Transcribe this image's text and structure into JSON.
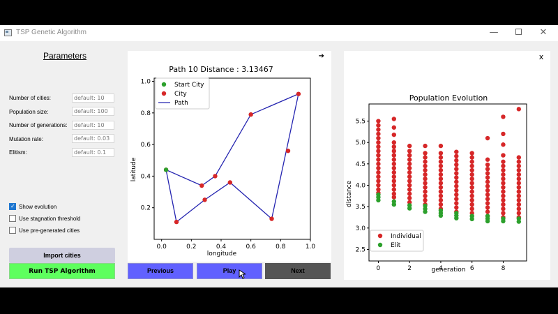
{
  "window": {
    "title": "TSP Genetic Algorithm",
    "close_panel": "x"
  },
  "parameters": {
    "title": "Parameters",
    "fields": [
      {
        "label": "Number of cities:",
        "placeholder": "default: 10"
      },
      {
        "label": "Population size:",
        "placeholder": "default: 100"
      },
      {
        "label": "Number of generations:",
        "placeholder": "default: 10"
      },
      {
        "label": "Mutation rate:",
        "placeholder": "default: 0.03"
      },
      {
        "label": "Elitism:",
        "placeholder": "default: 0.1"
      }
    ],
    "checks": [
      {
        "label": "Show evolution",
        "checked": true
      },
      {
        "label": "Use stagnation threshold",
        "checked": false
      },
      {
        "label": "Use pre-generated cities",
        "checked": false
      }
    ],
    "import_label": "Import cities",
    "run_label": "Run TSP Algorithm"
  },
  "controls": {
    "previous": "Previous",
    "play": "Play",
    "next": "Next",
    "arrow": "➔"
  },
  "colors": {
    "run": "#5eff5e",
    "nav": "#6161ff",
    "next": "#555555",
    "city": "#d62728",
    "start": "#2ca02c",
    "path": "#2424b0"
  },
  "chart_data": [
    {
      "type": "line",
      "title": "Path 10 Distance : 3.13467",
      "xlabel": "longitude",
      "ylabel": "latitude",
      "xlim": [
        -0.05,
        1.0
      ],
      "ylim": [
        0.0,
        1.02
      ],
      "xticks": [
        "0.0",
        "0.2",
        "0.4",
        "0.6",
        "0.8",
        "1.0"
      ],
      "yticks": [
        "0.2",
        "0.4",
        "0.6",
        "0.8",
        "1.0"
      ],
      "legend": [
        "Start City",
        "City",
        "Path"
      ],
      "start_city": [
        0.03,
        0.44
      ],
      "cities": [
        [
          0.03,
          0.44
        ],
        [
          0.1,
          0.11
        ],
        [
          0.29,
          0.25
        ],
        [
          0.46,
          0.36
        ],
        [
          0.74,
          0.13
        ],
        [
          0.92,
          0.92
        ],
        [
          0.6,
          0.79
        ],
        [
          0.36,
          0.4
        ],
        [
          0.27,
          0.34
        ],
        [
          0.85,
          0.56
        ]
      ],
      "path": [
        [
          0.03,
          0.44
        ],
        [
          0.1,
          0.11
        ],
        [
          0.29,
          0.25
        ],
        [
          0.46,
          0.36
        ],
        [
          0.74,
          0.13
        ],
        [
          0.92,
          0.92
        ],
        [
          0.6,
          0.79
        ],
        [
          0.36,
          0.4
        ],
        [
          0.27,
          0.34
        ],
        [
          0.03,
          0.44
        ]
      ]
    },
    {
      "type": "scatter",
      "title": "Population Evolution",
      "xlabel": "generation",
      "ylabel": "distance",
      "xlim": [
        -0.6,
        9.5
      ],
      "ylim": [
        2.23,
        5.9
      ],
      "xticks": [
        "0",
        "2",
        "4",
        "6",
        "8"
      ],
      "yticks": [
        "2.5",
        "3.0",
        "3.5",
        "4.0",
        "4.5",
        "5.0",
        "5.5"
      ],
      "legend": [
        "Individual",
        "Elit"
      ],
      "individual": {
        "0": [
          3.82,
          3.9,
          4.0,
          4.1,
          4.2,
          4.3,
          4.4,
          4.5,
          4.6,
          4.7,
          4.8,
          4.9,
          5.0,
          5.1,
          5.2,
          5.3,
          5.4,
          5.5
        ],
        "1": [
          3.72,
          3.8,
          3.9,
          4.0,
          4.1,
          4.2,
          4.3,
          4.4,
          4.5,
          4.6,
          4.7,
          4.8,
          4.9,
          5.0,
          5.18,
          5.35,
          5.55
        ],
        "2": [
          3.6,
          3.7,
          3.8,
          3.9,
          4.0,
          4.1,
          4.2,
          4.3,
          4.4,
          4.5,
          4.6,
          4.7,
          4.8,
          4.92
        ],
        "3": [
          3.55,
          3.65,
          3.75,
          3.85,
          3.95,
          4.05,
          4.15,
          4.25,
          4.35,
          4.45,
          4.55,
          4.65,
          4.75,
          4.92
        ],
        "4": [
          3.45,
          3.55,
          3.65,
          3.75,
          3.85,
          3.95,
          4.05,
          4.15,
          4.25,
          4.35,
          4.45,
          4.55,
          4.65,
          4.75,
          4.92
        ],
        "5": [
          3.38,
          3.48,
          3.58,
          3.68,
          3.78,
          3.88,
          3.98,
          4.08,
          4.18,
          4.28,
          4.38,
          4.48,
          4.58,
          4.68,
          4.78
        ],
        "6": [
          3.35,
          3.45,
          3.55,
          3.65,
          3.75,
          3.85,
          3.95,
          4.05,
          4.15,
          4.25,
          4.35,
          4.45,
          4.55,
          4.65,
          4.75
        ],
        "7": [
          3.28,
          3.38,
          3.48,
          3.58,
          3.68,
          3.78,
          3.88,
          3.98,
          4.08,
          4.18,
          4.28,
          4.38,
          4.48,
          4.6,
          5.1
        ],
        "8": [
          3.25,
          3.35,
          3.45,
          3.55,
          3.65,
          3.75,
          3.85,
          3.95,
          4.05,
          4.15,
          4.25,
          4.35,
          4.45,
          4.55,
          4.7,
          4.95,
          5.2,
          5.6
        ],
        "9": [
          3.25,
          3.35,
          3.45,
          3.55,
          3.65,
          3.75,
          3.85,
          3.95,
          4.05,
          4.15,
          4.25,
          4.35,
          4.45,
          4.55,
          4.65,
          5.78
        ]
      },
      "elit": {
        "0": [
          3.65,
          3.72,
          3.78
        ],
        "1": [
          3.55,
          3.62
        ],
        "2": [
          3.46,
          3.53
        ],
        "3": [
          3.38,
          3.45,
          3.52
        ],
        "4": [
          3.29,
          3.35,
          3.41
        ],
        "5": [
          3.23,
          3.29,
          3.35
        ],
        "6": [
          3.21,
          3.28
        ],
        "7": [
          3.16,
          3.22,
          3.28
        ],
        "8": [
          3.16,
          3.22
        ],
        "9": [
          3.15,
          3.22
        ]
      }
    }
  ]
}
